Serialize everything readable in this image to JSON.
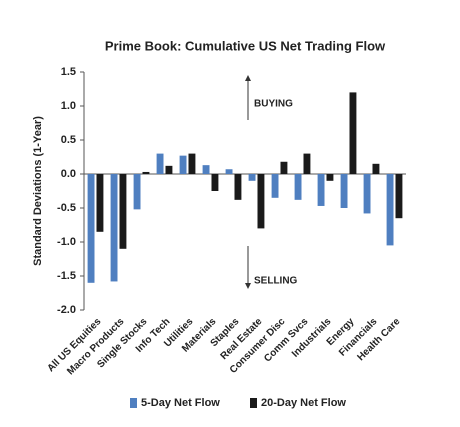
{
  "chart_data": {
    "type": "bar",
    "title": "Prime Book: Cumulative US Net Trading Flow",
    "y_label": "Standard Deviations (1-Year)",
    "annotations": [
      "BUYING",
      "SELLING"
    ],
    "categories": [
      "All US Equities",
      "Macro Products",
      "Single Stocks",
      "Info Tech",
      "Utilities",
      "Materials",
      "Staples",
      "Real Estate",
      "Consumer Disc",
      "Comm Svcs",
      "Industrials",
      "Energy",
      "Financials",
      "Health Care"
    ],
    "series": [
      {
        "name": "5-Day Net Flow",
        "color": "#4f7fc0",
        "values": [
          -1.6,
          -1.58,
          -0.52,
          0.3,
          0.27,
          0.13,
          0.07,
          -0.1,
          -0.35,
          -0.38,
          -0.47,
          -0.5,
          -0.58,
          -1.05
        ]
      },
      {
        "name": "20-Day Net Flow",
        "color": "#1a1a1a",
        "values": [
          -0.85,
          -1.1,
          0.03,
          0.12,
          0.3,
          -0.25,
          -0.38,
          -0.8,
          0.18,
          0.3,
          -0.1,
          1.2,
          0.15,
          -0.65
        ]
      }
    ],
    "ylim": [
      -2.0,
      1.5
    ],
    "yticks": [
      {
        "value": 1.5,
        "label": "1.5"
      },
      {
        "value": 1.0,
        "label": "1.0"
      },
      {
        "value": 0.5,
        "label": "0.5"
      },
      {
        "value": 0.0,
        "label": "0.0"
      },
      {
        "value": -0.5,
        "label": "-0.5"
      },
      {
        "value": -1.0,
        "label": "-1.0"
      },
      {
        "value": -1.5,
        "label": "-1.5"
      },
      {
        "value": -2.0,
        "label": "-2.0"
      }
    ],
    "grid": false,
    "legend": "bottom"
  }
}
